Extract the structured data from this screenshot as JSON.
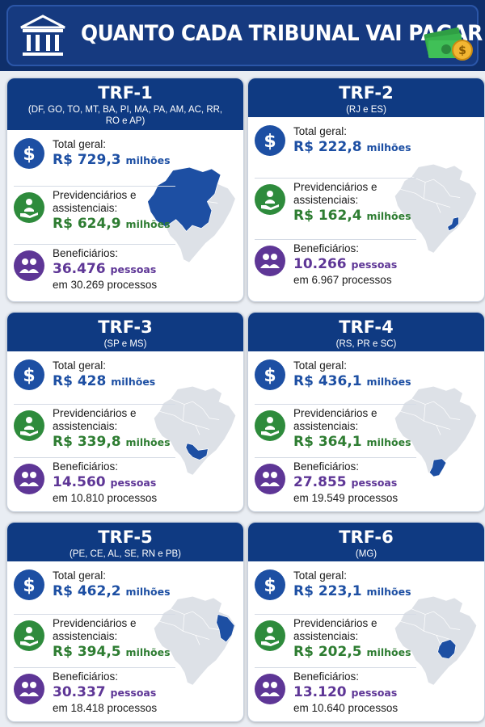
{
  "header": {
    "title": "QUANTO CADA TRIBUNAL VAI PAGAR",
    "icon_left": "bank-icon",
    "icon_right": "money-icon"
  },
  "colors": {
    "header_bg": "#0f2f6b",
    "card_head": "#0f3a82",
    "blue": "#1d4fa3",
    "green": "#2e7d32",
    "purple": "#5e3696",
    "map_highlight": "#1d4fa3",
    "map_base": "#dde1e7"
  },
  "labels": {
    "total": "Total geral:",
    "prev_line1": "Previdenciários e",
    "prev_line2": "assistenciais:",
    "benef": "Beneficiários:"
  },
  "cards": [
    {
      "name": "TRF-1",
      "states": "(DF, GO, TO, MT, BA, PI, MA, PA, AM, AC, RR, RO e AP)",
      "total_value": "R$ 729,3",
      "total_unit": "milhões",
      "prev_value": "R$ 624,9",
      "prev_unit": "milhões",
      "benef_value": "36.476",
      "benef_unit": "pessoas",
      "processes": "em 30.269 processos",
      "region": "north-center"
    },
    {
      "name": "TRF-2",
      "states": "(RJ e ES)",
      "total_value": "R$ 222,8",
      "total_unit": "milhões",
      "prev_value": "R$ 162,4",
      "prev_unit": "milhões",
      "benef_value": "10.266",
      "benef_unit": "pessoas",
      "processes": "em 6.967 processos",
      "region": "rj-es"
    },
    {
      "name": "TRF-3",
      "states": "(SP e MS)",
      "total_value": "R$ 428",
      "total_unit": "milhões",
      "prev_value": "R$ 339,8",
      "prev_unit": "milhões",
      "benef_value": "14.560",
      "benef_unit": "pessoas",
      "processes": "em 10.810 processos",
      "region": "sp-ms"
    },
    {
      "name": "TRF-4",
      "states": "(RS, PR e SC)",
      "total_value": "R$ 436,1",
      "total_unit": "milhões",
      "prev_value": "R$ 364,1",
      "prev_unit": "milhões",
      "benef_value": "27.855",
      "benef_unit": "pessoas",
      "processes": "em 19.549 processos",
      "region": "south"
    },
    {
      "name": "TRF-5",
      "states": "(PE, CE, AL, SE, RN e PB)",
      "total_value": "R$ 462,2",
      "total_unit": "milhões",
      "prev_value": "R$ 394,5",
      "prev_unit": "milhões",
      "benef_value": "30.337",
      "benef_unit": "pessoas",
      "processes": "em 18.418 processos",
      "region": "northeast"
    },
    {
      "name": "TRF-6",
      "states": "(MG)",
      "total_value": "R$ 223,1",
      "total_unit": "milhões",
      "prev_value": "R$ 202,5",
      "prev_unit": "milhões",
      "benef_value": "13.120",
      "benef_unit": "pessoas",
      "processes": "em 10.640 processos",
      "region": "mg"
    }
  ]
}
